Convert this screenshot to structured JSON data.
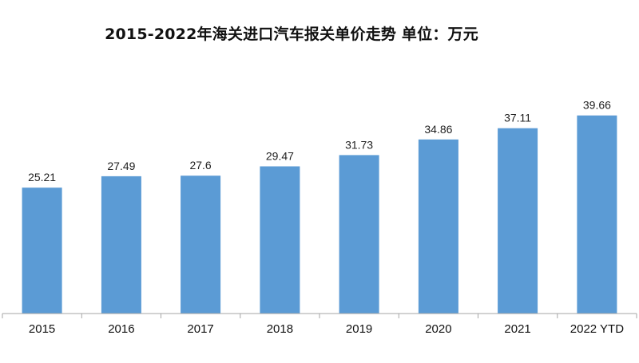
{
  "chart_data": {
    "type": "bar",
    "title": "2015-2022年海关进口汽车报关单价走势  单位：万元",
    "categories": [
      "2015",
      "2016",
      "2017",
      "2018",
      "2019",
      "2020",
      "2021",
      "2022 YTD"
    ],
    "series": [
      {
        "values": [
          25.21,
          27.49,
          27.6,
          29.47,
          31.73,
          34.86,
          37.11,
          39.66
        ],
        "color": "#5b9bd5"
      }
    ],
    "data_labels": [
      "25.21",
      "27.49",
      "27.6",
      "29.47",
      "31.73",
      "34.86",
      "37.11",
      "39.66"
    ],
    "xlabel": "",
    "ylabel": "",
    "ylim": [
      0,
      45
    ],
    "grid": false,
    "legend": "none",
    "colors": {
      "bar": "#5b9bd5",
      "axis": "#a6a6a6"
    }
  }
}
